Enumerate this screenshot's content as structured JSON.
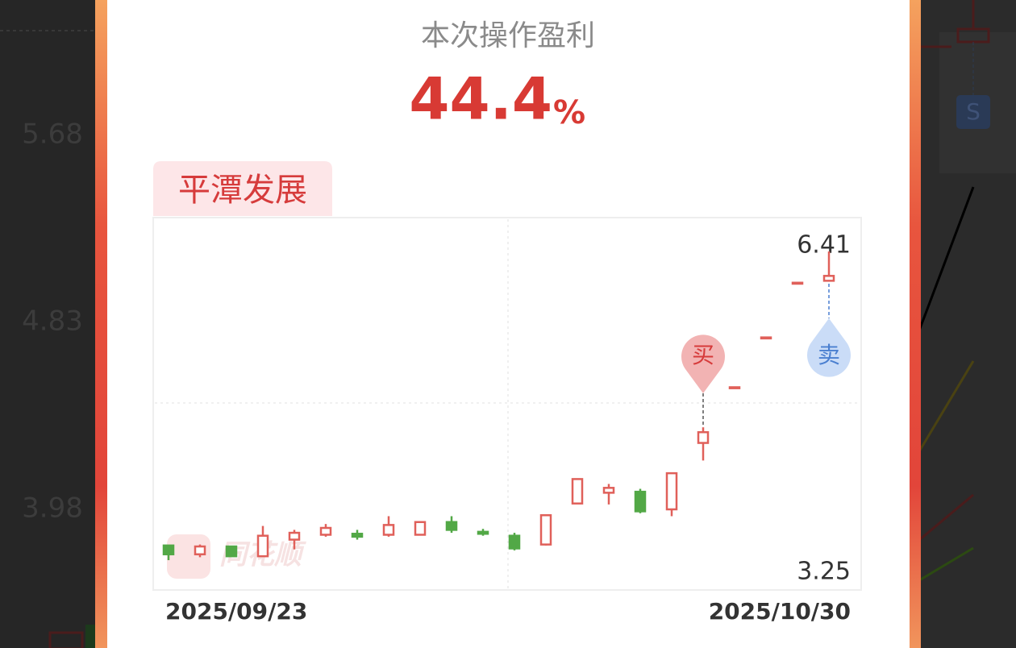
{
  "header": {
    "title": "本次操作盈利",
    "profit": "44.4",
    "unit": "%"
  },
  "stock": {
    "name": "平潭发展"
  },
  "background": {
    "price_labels": [
      "5.68",
      "4.83",
      "3.98"
    ],
    "badge": "S"
  },
  "watermark": "同花顺",
  "chart_data": {
    "type": "candlestick",
    "categories": [
      "2025/09/23",
      null,
      null,
      null,
      null,
      null,
      null,
      null,
      null,
      null,
      null,
      null,
      null,
      null,
      null,
      null,
      null,
      null,
      null,
      null,
      null,
      "2025/10/30"
    ],
    "open": [
      3.4,
      3.31,
      3.39,
      3.29,
      3.46,
      3.51,
      3.52,
      3.51,
      3.51,
      3.64,
      3.54,
      3.5,
      3.41,
      3.83,
      3.94,
      3.95,
      3.77,
      4.45,
      5.01,
      5.52,
      6.08,
      6.11
    ],
    "high": [
      3.4,
      3.41,
      3.39,
      3.6,
      3.56,
      3.62,
      3.56,
      3.7,
      3.64,
      3.7,
      3.57,
      3.53,
      3.71,
      4.08,
      4.03,
      3.98,
      4.14,
      4.61,
      5.02,
      5.53,
      6.09,
      6.41
    ],
    "low": [
      3.25,
      3.28,
      3.29,
      3.29,
      3.36,
      3.49,
      3.46,
      3.49,
      3.51,
      3.53,
      3.5,
      3.35,
      3.4,
      3.83,
      3.82,
      3.73,
      3.7,
      4.27,
      5.01,
      5.52,
      6.08,
      6.11
    ],
    "close": [
      3.31,
      3.39,
      3.29,
      3.5,
      3.53,
      3.58,
      3.49,
      3.61,
      3.64,
      3.56,
      3.52,
      3.37,
      3.71,
      4.08,
      3.99,
      3.75,
      4.14,
      4.56,
      5.02,
      5.53,
      6.09,
      6.16
    ],
    "up_color": "#e0605a",
    "down_color": "#52a846",
    "ylim": [
      3.25,
      6.41
    ],
    "markers": {
      "buy": "买",
      "sell": "卖"
    }
  }
}
